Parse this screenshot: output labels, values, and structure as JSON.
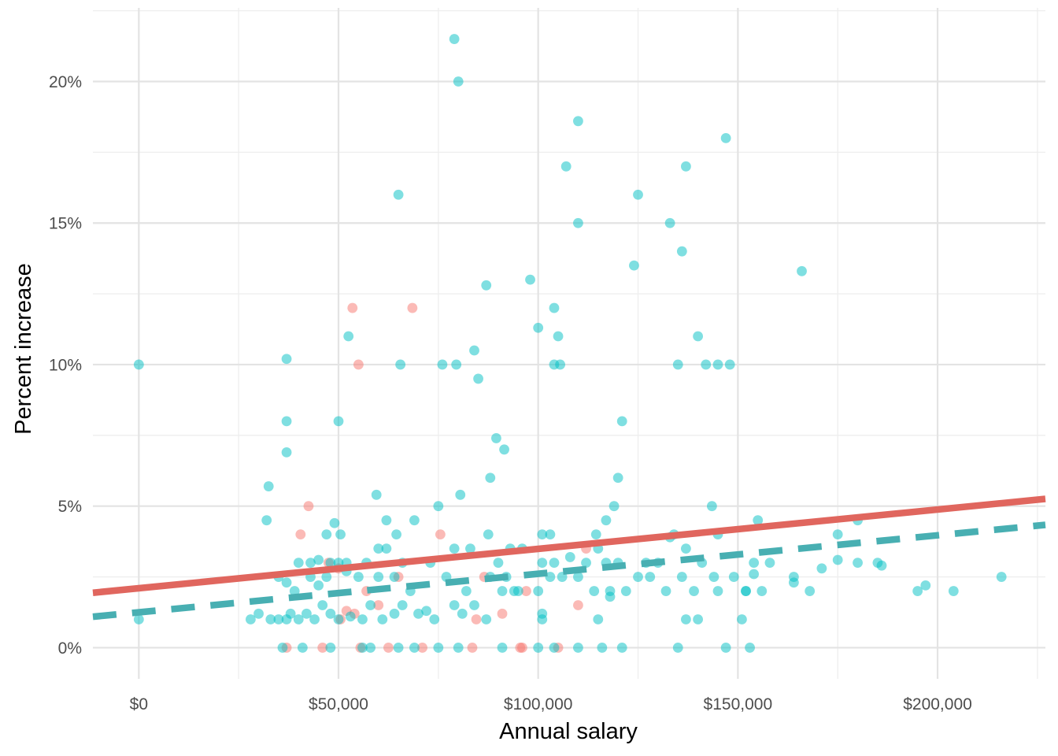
{
  "chart_data": {
    "type": "scatter",
    "title": "",
    "xlabel": "Annual salary",
    "ylabel": "Percent increase",
    "xlim": [
      -11500,
      227000
    ],
    "ylim": [
      -1.1,
      22.6
    ],
    "x_ticks": [
      0,
      50000,
      100000,
      150000,
      200000
    ],
    "x_tick_labels": [
      "$0",
      "$50,000",
      "$100,000",
      "$150,000",
      "$200,000"
    ],
    "x_minor_ticks": [
      25000,
      75000,
      125000,
      175000,
      225000
    ],
    "y_ticks": [
      0,
      5,
      10,
      15,
      20
    ],
    "y_tick_labels": [
      "0%",
      "5%",
      "10%",
      "15%",
      "20%"
    ],
    "y_minor_ticks": [
      2.5,
      7.5,
      12.5,
      17.5,
      22.5
    ],
    "grid": true,
    "legend": "none",
    "series": [
      {
        "name": "group-red",
        "color": "#F8766D",
        "points": [
          [
            53500,
            12
          ],
          [
            68500,
            12
          ],
          [
            55000,
            10
          ],
          [
            42500,
            5
          ],
          [
            40500,
            4
          ],
          [
            75500,
            4
          ],
          [
            47500,
            3
          ],
          [
            50000,
            2.8
          ],
          [
            57000,
            2
          ],
          [
            52000,
            1.3
          ],
          [
            54000,
            1.2
          ],
          [
            50500,
            1
          ],
          [
            60000,
            1.5
          ],
          [
            65000,
            2.5
          ],
          [
            86500,
            2.5
          ],
          [
            84500,
            1
          ],
          [
            91000,
            1.2
          ],
          [
            97000,
            2
          ],
          [
            110000,
            1.5
          ],
          [
            112000,
            3.5
          ],
          [
            37000,
            0
          ],
          [
            46000,
            0
          ],
          [
            55500,
            0
          ],
          [
            62500,
            0
          ],
          [
            71000,
            0
          ],
          [
            83500,
            0
          ],
          [
            95500,
            0
          ],
          [
            96000,
            0
          ],
          [
            105000,
            0
          ]
        ]
      },
      {
        "name": "group-teal",
        "color": "#00BFC4",
        "points": [
          [
            0,
            10
          ],
          [
            0,
            1
          ],
          [
            37000,
            10.2
          ],
          [
            37000,
            8
          ],
          [
            37000,
            6.9
          ],
          [
            32500,
            5.7
          ],
          [
            32000,
            4.5
          ],
          [
            50000,
            8
          ],
          [
            52500,
            11
          ],
          [
            65000,
            16
          ],
          [
            65500,
            10
          ],
          [
            79000,
            21.5
          ],
          [
            80000,
            20
          ],
          [
            76000,
            10
          ],
          [
            79500,
            10
          ],
          [
            84000,
            10.5
          ],
          [
            85000,
            9.5
          ],
          [
            87000,
            12.8
          ],
          [
            89500,
            7.4
          ],
          [
            91500,
            7
          ],
          [
            88000,
            6
          ],
          [
            80500,
            5.4
          ],
          [
            75000,
            5
          ],
          [
            98000,
            13
          ],
          [
            100000,
            11.3
          ],
          [
            104000,
            12
          ],
          [
            105000,
            11
          ],
          [
            104000,
            10
          ],
          [
            105500,
            10
          ],
          [
            107000,
            17
          ],
          [
            110000,
            18.6
          ],
          [
            110000,
            15
          ],
          [
            125000,
            16
          ],
          [
            124000,
            13.5
          ],
          [
            121000,
            8
          ],
          [
            120000,
            6
          ],
          [
            137000,
            17
          ],
          [
            133000,
            15
          ],
          [
            136000,
            14
          ],
          [
            140000,
            11
          ],
          [
            135000,
            10
          ],
          [
            142000,
            10
          ],
          [
            145000,
            10
          ],
          [
            148000,
            10
          ],
          [
            147000,
            18
          ],
          [
            166000,
            13.3
          ],
          [
            59500,
            5.4
          ],
          [
            62000,
            4.5
          ],
          [
            64500,
            4
          ],
          [
            69000,
            4.5
          ],
          [
            87500,
            4
          ],
          [
            101000,
            4
          ],
          [
            103000,
            4
          ],
          [
            114500,
            4
          ],
          [
            117000,
            4.5
          ],
          [
            119000,
            5
          ],
          [
            134000,
            4
          ],
          [
            143500,
            5
          ],
          [
            145000,
            4
          ],
          [
            155000,
            4.5
          ],
          [
            180000,
            4.5
          ],
          [
            175000,
            4
          ],
          [
            47000,
            4
          ],
          [
            49000,
            4.4
          ],
          [
            50500,
            4
          ],
          [
            40000,
            3
          ],
          [
            43000,
            3
          ],
          [
            45000,
            3.1
          ],
          [
            48000,
            3
          ],
          [
            50000,
            3
          ],
          [
            52000,
            3
          ],
          [
            57000,
            3
          ],
          [
            60000,
            3.5
          ],
          [
            62000,
            3.5
          ],
          [
            66000,
            3
          ],
          [
            73000,
            3
          ],
          [
            79000,
            3.5
          ],
          [
            83000,
            3.5
          ],
          [
            90000,
            3
          ],
          [
            93000,
            3.5
          ],
          [
            96000,
            3.5
          ],
          [
            101000,
            3
          ],
          [
            104000,
            3
          ],
          [
            108000,
            3.2
          ],
          [
            112000,
            3
          ],
          [
            115000,
            3.5
          ],
          [
            117000,
            3
          ],
          [
            120000,
            3
          ],
          [
            127000,
            3
          ],
          [
            130000,
            3
          ],
          [
            133000,
            3.9
          ],
          [
            137000,
            3.5
          ],
          [
            141000,
            3
          ],
          [
            154000,
            3
          ],
          [
            158000,
            3
          ],
          [
            175000,
            3.1
          ],
          [
            180000,
            3
          ],
          [
            185000,
            3
          ],
          [
            186000,
            2.9
          ],
          [
            35000,
            2.5
          ],
          [
            37000,
            2.3
          ],
          [
            39000,
            2
          ],
          [
            43000,
            2.5
          ],
          [
            45000,
            2.2
          ],
          [
            47000,
            2.5
          ],
          [
            52000,
            2.7
          ],
          [
            55000,
            2.5
          ],
          [
            60000,
            2.5
          ],
          [
            64000,
            2.5
          ],
          [
            68000,
            2
          ],
          [
            77000,
            2.5
          ],
          [
            82000,
            2
          ],
          [
            88000,
            2.5
          ],
          [
            92000,
            2.5
          ],
          [
            95000,
            2
          ],
          [
            100000,
            2
          ],
          [
            103000,
            2.5
          ],
          [
            106000,
            2.5
          ],
          [
            110000,
            2.5
          ],
          [
            114000,
            2
          ],
          [
            118000,
            2
          ],
          [
            122000,
            2
          ],
          [
            125000,
            2.5
          ],
          [
            128000,
            2.5
          ],
          [
            132000,
            2
          ],
          [
            136000,
            2.5
          ],
          [
            139000,
            2
          ],
          [
            144000,
            2.5
          ],
          [
            145000,
            2
          ],
          [
            149000,
            2.5
          ],
          [
            152000,
            2
          ],
          [
            154000,
            2.6
          ],
          [
            156000,
            2
          ],
          [
            164000,
            2.3
          ],
          [
            164000,
            2.5
          ],
          [
            168000,
            2
          ],
          [
            171000,
            2.8
          ],
          [
            195000,
            2
          ],
          [
            197000,
            2.2
          ],
          [
            204000,
            2
          ],
          [
            216000,
            2.5
          ],
          [
            28000,
            1
          ],
          [
            30000,
            1.2
          ],
          [
            33000,
            1
          ],
          [
            35000,
            1
          ],
          [
            37000,
            1
          ],
          [
            38000,
            1.2
          ],
          [
            40000,
            1
          ],
          [
            42000,
            1.2
          ],
          [
            44000,
            1
          ],
          [
            46000,
            1.5
          ],
          [
            48000,
            1.2
          ],
          [
            50000,
            1
          ],
          [
            53000,
            1.1
          ],
          [
            56000,
            1
          ],
          [
            58000,
            1.5
          ],
          [
            61000,
            1
          ],
          [
            64000,
            1.2
          ],
          [
            66000,
            1.5
          ],
          [
            70000,
            1.2
          ],
          [
            72000,
            1.3
          ],
          [
            74000,
            1
          ],
          [
            79000,
            1.5
          ],
          [
            81000,
            1.2
          ],
          [
            84000,
            1.5
          ],
          [
            87000,
            1
          ],
          [
            91000,
            2
          ],
          [
            94000,
            2
          ],
          [
            101000,
            1.2
          ],
          [
            101000,
            1
          ],
          [
            115000,
            1
          ],
          [
            118000,
            1.8
          ],
          [
            137000,
            1
          ],
          [
            140000,
            1
          ],
          [
            151000,
            1
          ],
          [
            152000,
            2
          ],
          [
            36000,
            0
          ],
          [
            41000,
            0
          ],
          [
            48000,
            0
          ],
          [
            56000,
            0
          ],
          [
            58000,
            0
          ],
          [
            65000,
            0
          ],
          [
            69000,
            0
          ],
          [
            75000,
            0
          ],
          [
            80000,
            0
          ],
          [
            91000,
            0
          ],
          [
            100000,
            0
          ],
          [
            104000,
            0
          ],
          [
            110000,
            0
          ],
          [
            116000,
            0
          ],
          [
            121000,
            0
          ],
          [
            135000,
            0
          ],
          [
            147000,
            0
          ],
          [
            153000,
            0
          ]
        ]
      }
    ],
    "trend_lines": [
      {
        "name": "trend-red",
        "color": "#E0665E",
        "style": "solid",
        "intercept": 2.1,
        "slope": 1.39e-05
      },
      {
        "name": "trend-teal",
        "color": "#48AFB2",
        "style": "dashed",
        "intercept": 1.25,
        "slope": 1.36e-05
      }
    ]
  }
}
